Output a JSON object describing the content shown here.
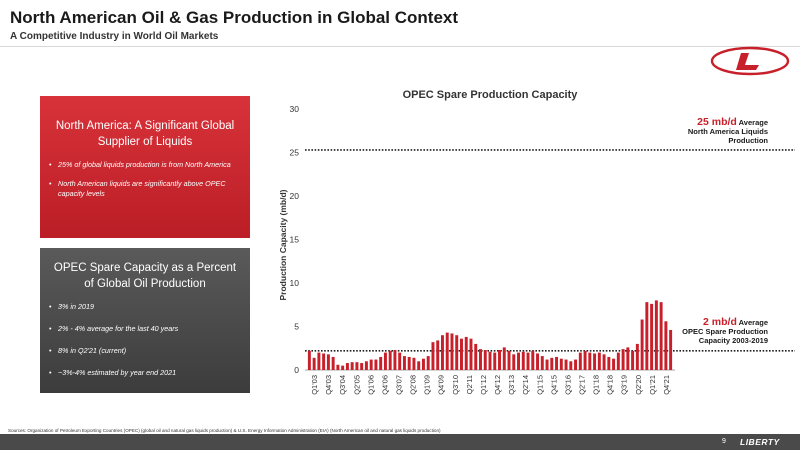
{
  "header": {
    "title": "North American Oil & Gas Production in Global Context",
    "subtitle": "A Competitive Industry in World Oil Markets"
  },
  "colors": {
    "accent": "#c8202a",
    "gray_box": "#4a4a4a",
    "bar": "#c8202a"
  },
  "panel_top": {
    "heading": "North America: A Significant Global Supplier of Liquids",
    "bullets": [
      "25% of global liquids production is from North America",
      "North American liquids are significantly above OPEC capacity levels"
    ]
  },
  "panel_bottom": {
    "heading": "OPEC Spare Capacity as a Percent of Global Oil Production",
    "bullets": [
      "3% in 2019",
      "2% - 4% average for the last 40 years",
      "8% in Q2'21 (current)",
      "~3%-4% estimated by year end 2021"
    ]
  },
  "annotations": {
    "na_value": "25 mb/d",
    "na_text1": "Average",
    "na_text2": "North America Liquids",
    "na_text3": "Production",
    "opec_value": "2 mb/d",
    "opec_text1": "Average",
    "opec_text2": "OPEC Spare Production",
    "opec_text3": "Capacity 2003-2019"
  },
  "chart_data": {
    "type": "bar",
    "title": "OPEC Spare Production Capacity",
    "xlabel": "",
    "ylabel": "Production Capacity (mb/d)",
    "ylim": [
      0,
      30
    ],
    "yticks": [
      0,
      5,
      10,
      15,
      20,
      25,
      30
    ],
    "grid": false,
    "tick_labels": [
      "Q1'03",
      "Q4'03",
      "Q3'04",
      "Q2'05",
      "Q1'06",
      "Q4'06",
      "Q3'07",
      "Q2'08",
      "Q1'09",
      "Q4'09",
      "Q3'10",
      "Q2'11",
      "Q1'12",
      "Q4'12",
      "Q3'13",
      "Q2'14",
      "Q1'15",
      "Q4'15",
      "Q3'16",
      "Q2'17",
      "Q1'18",
      "Q4'18",
      "Q3'19",
      "Q2'20",
      "Q1'21",
      "Q4'21"
    ],
    "values": [
      2.2,
      1.4,
      2.0,
      1.9,
      1.8,
      1.5,
      0.6,
      0.5,
      0.8,
      0.9,
      0.9,
      0.8,
      1.0,
      1.2,
      1.2,
      1.5,
      2.0,
      2.2,
      2.3,
      2.0,
      1.6,
      1.5,
      1.4,
      1.0,
      1.3,
      1.6,
      3.2,
      3.4,
      4.0,
      4.3,
      4.2,
      4.0,
      3.6,
      3.8,
      3.6,
      3.0,
      2.4,
      2.3,
      2.1,
      2.0,
      2.3,
      2.6,
      2.2,
      1.8,
      2.0,
      2.1,
      2.0,
      2.2,
      1.9,
      1.6,
      1.2,
      1.4,
      1.5,
      1.3,
      1.2,
      1.0,
      1.2,
      2.0,
      2.2,
      2.0,
      1.9,
      2.0,
      1.8,
      1.5,
      1.3,
      2.0,
      2.4,
      2.6,
      2.2,
      3.0,
      5.8,
      7.8,
      7.6,
      8.0,
      7.8,
      5.6,
      4.6
    ],
    "reference_lines": [
      {
        "label": "Average North America Liquids Production",
        "value": 25.3
      },
      {
        "label": "Average OPEC Spare Production Capacity 2003-2019",
        "value": 2.2
      }
    ]
  },
  "footer": {
    "sources": "Sources: Organization of Petroleum Exporting Countries (OPEC) (global oil and natural gas liquids production) & U.S. Energy Information Administration (EIA) (North American oil and natural gas liquids production)",
    "page_number": "9",
    "brand": "LIBERTY"
  }
}
